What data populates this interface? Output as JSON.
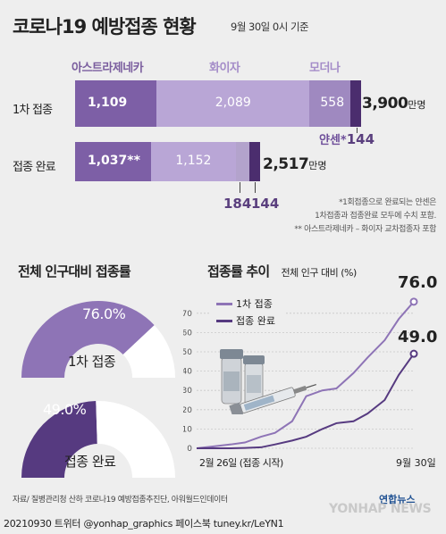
{
  "title": "코로나19 예방접종 현황",
  "date_label": "9월 30일 0시 기준",
  "top_chart": {
    "vendor_headers": [
      "아스트라제네카",
      "화이자",
      "모더나"
    ],
    "janssen_label": "얀센*",
    "janssen_value": "144",
    "unit": "만명",
    "notes": [
      "*1회접종으로 완료되는 얀센은",
      "1차접종과 접종완료 모두에 수치 포함.",
      "** 아스트라제네카 – 화이자 교차접종자 포함"
    ]
  },
  "gauge_section": {
    "title": "전체 인구대비 접종률",
    "first": {
      "pct_label": "76.0%",
      "label": "1차 접종",
      "value": 76.0
    },
    "full": {
      "pct_label": "49.0%",
      "label": "접종 완료",
      "value": 49.0
    }
  },
  "line_section": {
    "title": "접종률 추이",
    "subtitle": "전체 인구 대비 (%)",
    "end_first": "76.0",
    "end_full": "49.0",
    "start_label": "2월 26일 (접종 시작)",
    "end_label": "9월 30일"
  },
  "footer": {
    "source": "자료/ 질병관리청 산하 코로나19 예방접종추진단, 아워월드인데이터",
    "sns": "20210930 트위터 @yonhap_graphics  페이스북 tuney.kr/LeYN1",
    "logo_ko": "연합뉴스",
    "logo_en": "YONHAP NEWS"
  },
  "colors": {
    "az": "#7d5fa6",
    "pfizer": "#b9a6d6",
    "moderna": "#9f89c0",
    "janssen": "#4b2d6e",
    "full": "#563a80",
    "first": "#8e74b6",
    "gauge_bg": "#ffffff"
  },
  "chart_data": [
    {
      "type": "bar",
      "title": "",
      "unit": "만명",
      "categories": [
        "1차 접종",
        "접종 완료"
      ],
      "series": [
        {
          "name": "아스트라제네카",
          "values": [
            1109,
            1037
          ],
          "labels": [
            "1,109",
            "1,037**"
          ]
        },
        {
          "name": "화이자",
          "values": [
            2089,
            1152
          ],
          "labels": [
            "2,089",
            "1,152"
          ]
        },
        {
          "name": "모더나",
          "values": [
            558,
            184
          ],
          "labels": [
            "558",
            "184"
          ]
        },
        {
          "name": "얀센",
          "values": [
            144,
            144
          ],
          "labels": [
            "144",
            "144"
          ]
        }
      ],
      "totals": [
        "3,900",
        "2,517"
      ]
    },
    {
      "type": "pie",
      "title": "전체 인구대비 접종률",
      "categories": [
        "1차 접종",
        "접종 완료"
      ],
      "values": [
        76.0,
        49.0
      ]
    },
    {
      "type": "line",
      "title": "접종률 추이",
      "ylabel": "전체 인구 대비 (%)",
      "ylim": [
        0,
        75
      ],
      "yticks": [
        0,
        10,
        20,
        30,
        40,
        50,
        60,
        70
      ],
      "x": [
        "2021-02-26",
        "2021-03-15",
        "2021-04-01",
        "2021-04-15",
        "2021-05-01",
        "2021-05-15",
        "2021-06-01",
        "2021-06-15",
        "2021-07-01",
        "2021-07-15",
        "2021-08-01",
        "2021-08-15",
        "2021-09-01",
        "2021-09-15",
        "2021-09-30"
      ],
      "series": [
        {
          "name": "1차 접종",
          "values": [
            0,
            1,
            2,
            3,
            6,
            8,
            14,
            27,
            30,
            31,
            39,
            47,
            56,
            67,
            76
          ]
        },
        {
          "name": "접종 완료",
          "values": [
            0,
            0,
            0,
            0.2,
            0.5,
            2,
            4,
            6,
            10,
            13,
            14,
            18,
            25,
            38,
            49
          ]
        }
      ]
    }
  ]
}
